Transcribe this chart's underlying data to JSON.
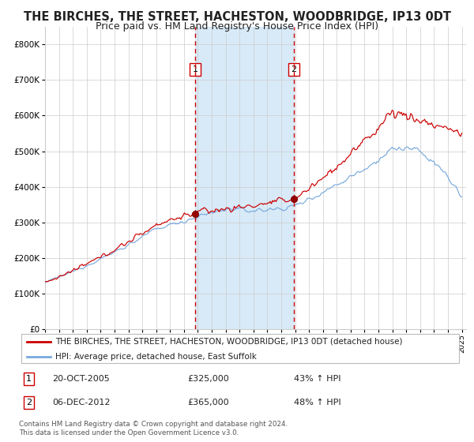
{
  "title": "THE BIRCHES, THE STREET, HACHESTON, WOODBRIDGE, IP13 0DT",
  "subtitle": "Price paid vs. HM Land Registry's House Price Index (HPI)",
  "title_fontsize": 10.5,
  "subtitle_fontsize": 9,
  "ylabel_red": "THE BIRCHES, THE STREET, HACHESTON, WOODBRIDGE, IP13 0DT (detached house)",
  "ylabel_blue": "HPI: Average price, detached house, East Suffolk",
  "red_color": "#cc0000",
  "blue_color": "#7aaadd",
  "highlight_color": "#d8eaf8",
  "grid_color": "#cccccc",
  "background_color": "#ffffff",
  "ylim": [
    0,
    850000
  ],
  "yticks": [
    0,
    100000,
    200000,
    300000,
    400000,
    500000,
    600000,
    700000,
    800000
  ],
  "ytick_labels": [
    "£0",
    "£100K",
    "£200K",
    "£300K",
    "£400K",
    "£500K",
    "£600K",
    "£700K",
    "£800K"
  ],
  "x_start_year": 1995,
  "x_end_year": 2025,
  "transaction1_date": 2005.8,
  "transaction1_price": 325000,
  "transaction2_date": 2012.92,
  "transaction2_price": 365000,
  "annotation1": "20-OCT-2005",
  "annotation1_price": "£325,000",
  "annotation1_hpi": "43% ↑ HPI",
  "annotation2": "06-DEC-2012",
  "annotation2_price": "£365,000",
  "annotation2_hpi": "48% ↑ HPI",
  "footnote": "Contains HM Land Registry data © Crown copyright and database right 2024.\nThis data is licensed under the Open Government Licence v3.0."
}
